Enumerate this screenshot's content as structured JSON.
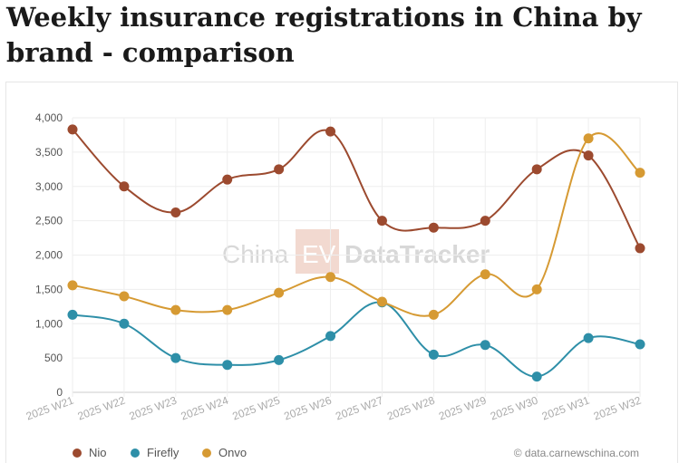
{
  "chart_data": {
    "type": "line",
    "title": "Weekly insurance registrations in China by brand - comparison",
    "xlabel": "",
    "ylabel": "",
    "categories": [
      "2025 W21",
      "2025 W22",
      "2025 W23",
      "2025 W24",
      "2025 W25",
      "2025 W26",
      "2025 W27",
      "2025 W28",
      "2025 W29",
      "2025 W30",
      "2025 W31",
      "2025 W32"
    ],
    "ylim": [
      0,
      4000
    ],
    "yticks": [
      "0",
      "500",
      "1,000",
      "1,500",
      "2,000",
      "2,500",
      "3,000",
      "3,500",
      "4,000"
    ],
    "grid": true,
    "legend": "bottom-left",
    "series": [
      {
        "name": "Nio",
        "color": "#9c4a2f",
        "values": [
          3830,
          3000,
          2620,
          3100,
          3250,
          3800,
          2500,
          2400,
          2500,
          3250,
          3450,
          2100
        ]
      },
      {
        "name": "Firefly",
        "color": "#2e8fa8",
        "values": [
          1130,
          1000,
          500,
          400,
          470,
          820,
          1310,
          550,
          690,
          230,
          790,
          700
        ]
      },
      {
        "name": "Onvo",
        "color": "#d69a33",
        "values": [
          1560,
          1400,
          1200,
          1200,
          1450,
          1680,
          1320,
          1130,
          1720,
          1500,
          3700,
          3200
        ]
      }
    ],
    "watermark": "China EV DataTracker",
    "source": "data.carnewschina.com"
  }
}
